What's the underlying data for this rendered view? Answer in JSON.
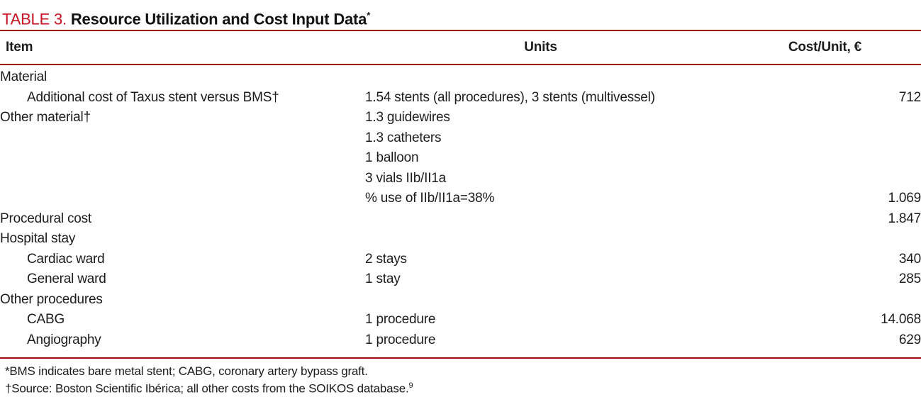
{
  "title": {
    "label": "TABLE 3.",
    "text": " Resource Utilization and Cost Input Data",
    "superscript": "*"
  },
  "columns": {
    "item": "Item",
    "units": "Units",
    "cost": "Cost/Unit, €"
  },
  "rows": [
    {
      "item": "Material",
      "units": "",
      "cost": ""
    },
    {
      "item": "Additional cost of Taxus stent versus BMS†",
      "units": "1.54 stents (all procedures), 3 stents (multivessel)",
      "cost": "712"
    },
    {
      "item": "Other material†",
      "units": "1.3 guidewires",
      "cost": ""
    },
    {
      "item": "",
      "units": "1.3 catheters",
      "cost": ""
    },
    {
      "item": "",
      "units": "1 balloon",
      "cost": ""
    },
    {
      "item": "",
      "units": "3 vials IIb/II1a",
      "cost": ""
    },
    {
      "item": "",
      "units": "% use of IIb/II1a=38%",
      "cost": "1.069"
    },
    {
      "item": "Procedural cost",
      "units": "",
      "cost": "1.847"
    },
    {
      "item": "Hospital stay",
      "units": "",
      "cost": ""
    },
    {
      "item": "Cardiac ward",
      "units": "2 stays",
      "cost": "340"
    },
    {
      "item": "General ward",
      "units": "1 stay",
      "cost": "285"
    },
    {
      "item": "Other procedures",
      "units": "",
      "cost": ""
    },
    {
      "item": "CABG",
      "units": "1 procedure",
      "cost": "14.068"
    },
    {
      "item": "Angiography",
      "units": "1 procedure",
      "cost": "629"
    }
  ],
  "footnotes": {
    "line1": "*BMS indicates bare metal stent; CABG, coronary artery bypass graft.",
    "line2": "†Source: Boston Scientific Ibérica; all other costs from the SOIKOS database.",
    "line2_sup": "9"
  },
  "colors": {
    "title_red": "#c41425",
    "rule_red": "#990d13"
  }
}
